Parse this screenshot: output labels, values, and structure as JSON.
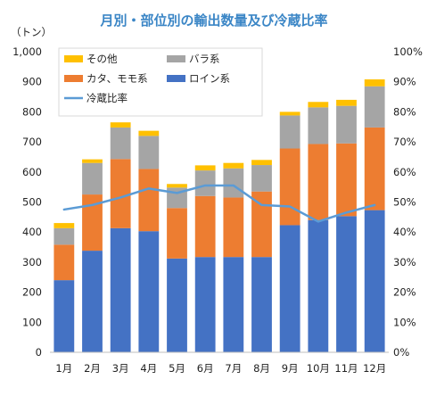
{
  "chart_data": {
    "type": "bar",
    "stacked": true,
    "title": "月別・部位別の輸出数量及び冷蔵比率",
    "y_unit_label": "（トン）",
    "categories": [
      "1月",
      "2月",
      "3月",
      "4月",
      "5月",
      "6月",
      "7月",
      "8月",
      "9月",
      "10月",
      "11月",
      "12月"
    ],
    "ylim": [
      0,
      1000
    ],
    "y_ticks": [
      "0",
      "100",
      "200",
      "300",
      "400",
      "500",
      "600",
      "700",
      "800",
      "900",
      "1,000"
    ],
    "y2lim": [
      0,
      100
    ],
    "y2_ticks": [
      "0%",
      "10%",
      "20%",
      "30%",
      "40%",
      "50%",
      "60%",
      "70%",
      "80%",
      "90%",
      "100%"
    ],
    "grid": false,
    "legend_position": "top-left",
    "series": [
      {
        "name": "ロイン系",
        "color": "#4472c4",
        "values": [
          240,
          338,
          413,
          403,
          312,
          317,
          317,
          317,
          423,
          440,
          453,
          473
        ]
      },
      {
        "name": "カタ、モモ系",
        "color": "#ed7d31",
        "values": [
          118,
          187,
          230,
          207,
          168,
          203,
          198,
          218,
          255,
          253,
          242,
          275
        ]
      },
      {
        "name": "バラ系",
        "color": "#a5a5a5",
        "values": [
          55,
          105,
          105,
          110,
          68,
          85,
          97,
          88,
          110,
          122,
          125,
          137
        ]
      },
      {
        "name": "その他",
        "color": "#ffc000",
        "values": [
          17,
          12,
          17,
          17,
          12,
          17,
          18,
          17,
          12,
          18,
          20,
          23
        ]
      }
    ],
    "line_series": {
      "name": "冷蔵比率",
      "color": "#5b9bd5",
      "axis": "right",
      "values": [
        47.5,
        49,
        51.5,
        54.5,
        53,
        55.5,
        55.5,
        49,
        48.5,
        43.5,
        46.5,
        49
      ]
    },
    "legend_order": [
      "その他",
      "バラ系",
      "カタ、モモ系",
      "ロイン系",
      "冷蔵比率"
    ]
  }
}
